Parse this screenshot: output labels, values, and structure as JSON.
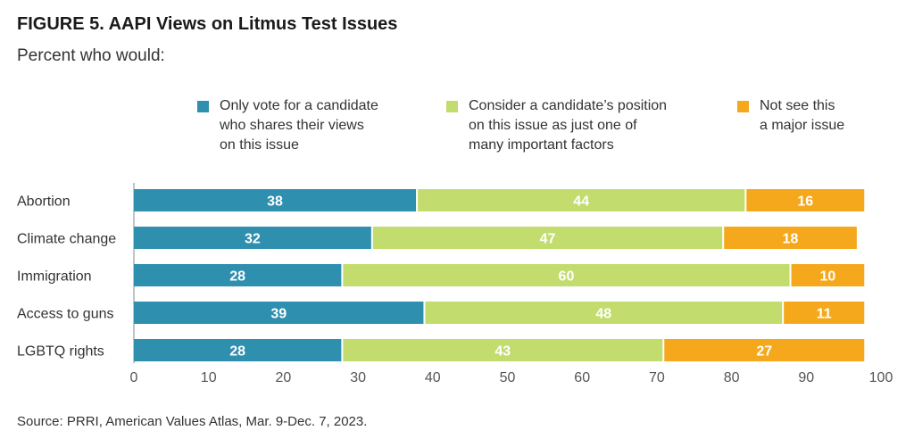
{
  "figure": {
    "title": "FIGURE 5. AAPI Views on Litmus Test Issues",
    "subtitle": "Percent who would:",
    "source": "Source: PRRI, American Values Atlas, Mar. 9-Dec. 7, 2023."
  },
  "chart_data": {
    "type": "bar",
    "orientation": "horizontal",
    "stacked": true,
    "categories": [
      "Abortion",
      "Climate change",
      "Immigration",
      "Access to guns",
      "LGBTQ rights"
    ],
    "series": [
      {
        "name": "Only vote for a candidate\nwho shares their views\non this issue",
        "color": "#2e8fae",
        "values": [
          38,
          32,
          28,
          39,
          28
        ]
      },
      {
        "name": "Consider a candidate’s position\non this issue as just one of\nmany important factors",
        "color": "#c2dc6e",
        "values": [
          44,
          47,
          60,
          48,
          43
        ]
      },
      {
        "name": "Not see this\na major issue",
        "color": "#f5a81c",
        "values": [
          16,
          18,
          10,
          11,
          27
        ]
      }
    ],
    "xlim": [
      0,
      100
    ],
    "x_ticks": [
      0,
      10,
      20,
      30,
      40,
      50,
      60,
      70,
      80,
      90,
      100
    ],
    "legend_position": "top",
    "grid": false
  }
}
